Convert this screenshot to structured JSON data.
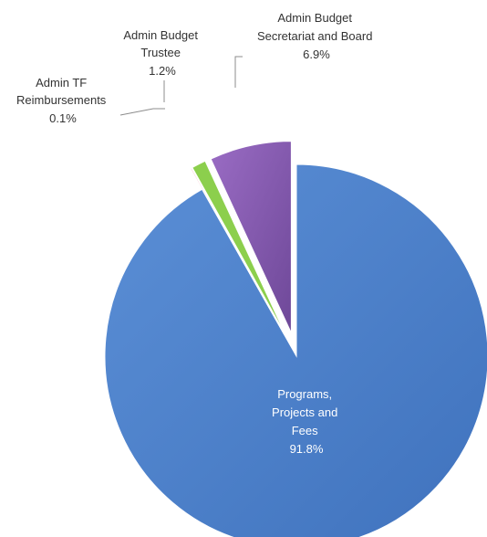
{
  "chart_data": {
    "type": "pie",
    "exploded": true,
    "slices": [
      {
        "label_lines": [
          "Programs,",
          "Projects and",
          "Fees"
        ],
        "value_label": "91.8%",
        "value": 91.8,
        "color": "#4a7fcb"
      },
      {
        "label_lines": [
          "Admin TF",
          "Reimbursements"
        ],
        "value_label": "0.1%",
        "value": 0.1,
        "color": "#f4b6b6"
      },
      {
        "label_lines": [
          "Admin Budget",
          "Trustee"
        ],
        "value_label": "1.2%",
        "value": 1.2,
        "color": "#8ccf4d"
      },
      {
        "label_lines": [
          "Admin Budget",
          "Secretariat and Board"
        ],
        "value_label": "6.9%",
        "value": 6.9,
        "color": "#8a5cb4"
      }
    ]
  }
}
